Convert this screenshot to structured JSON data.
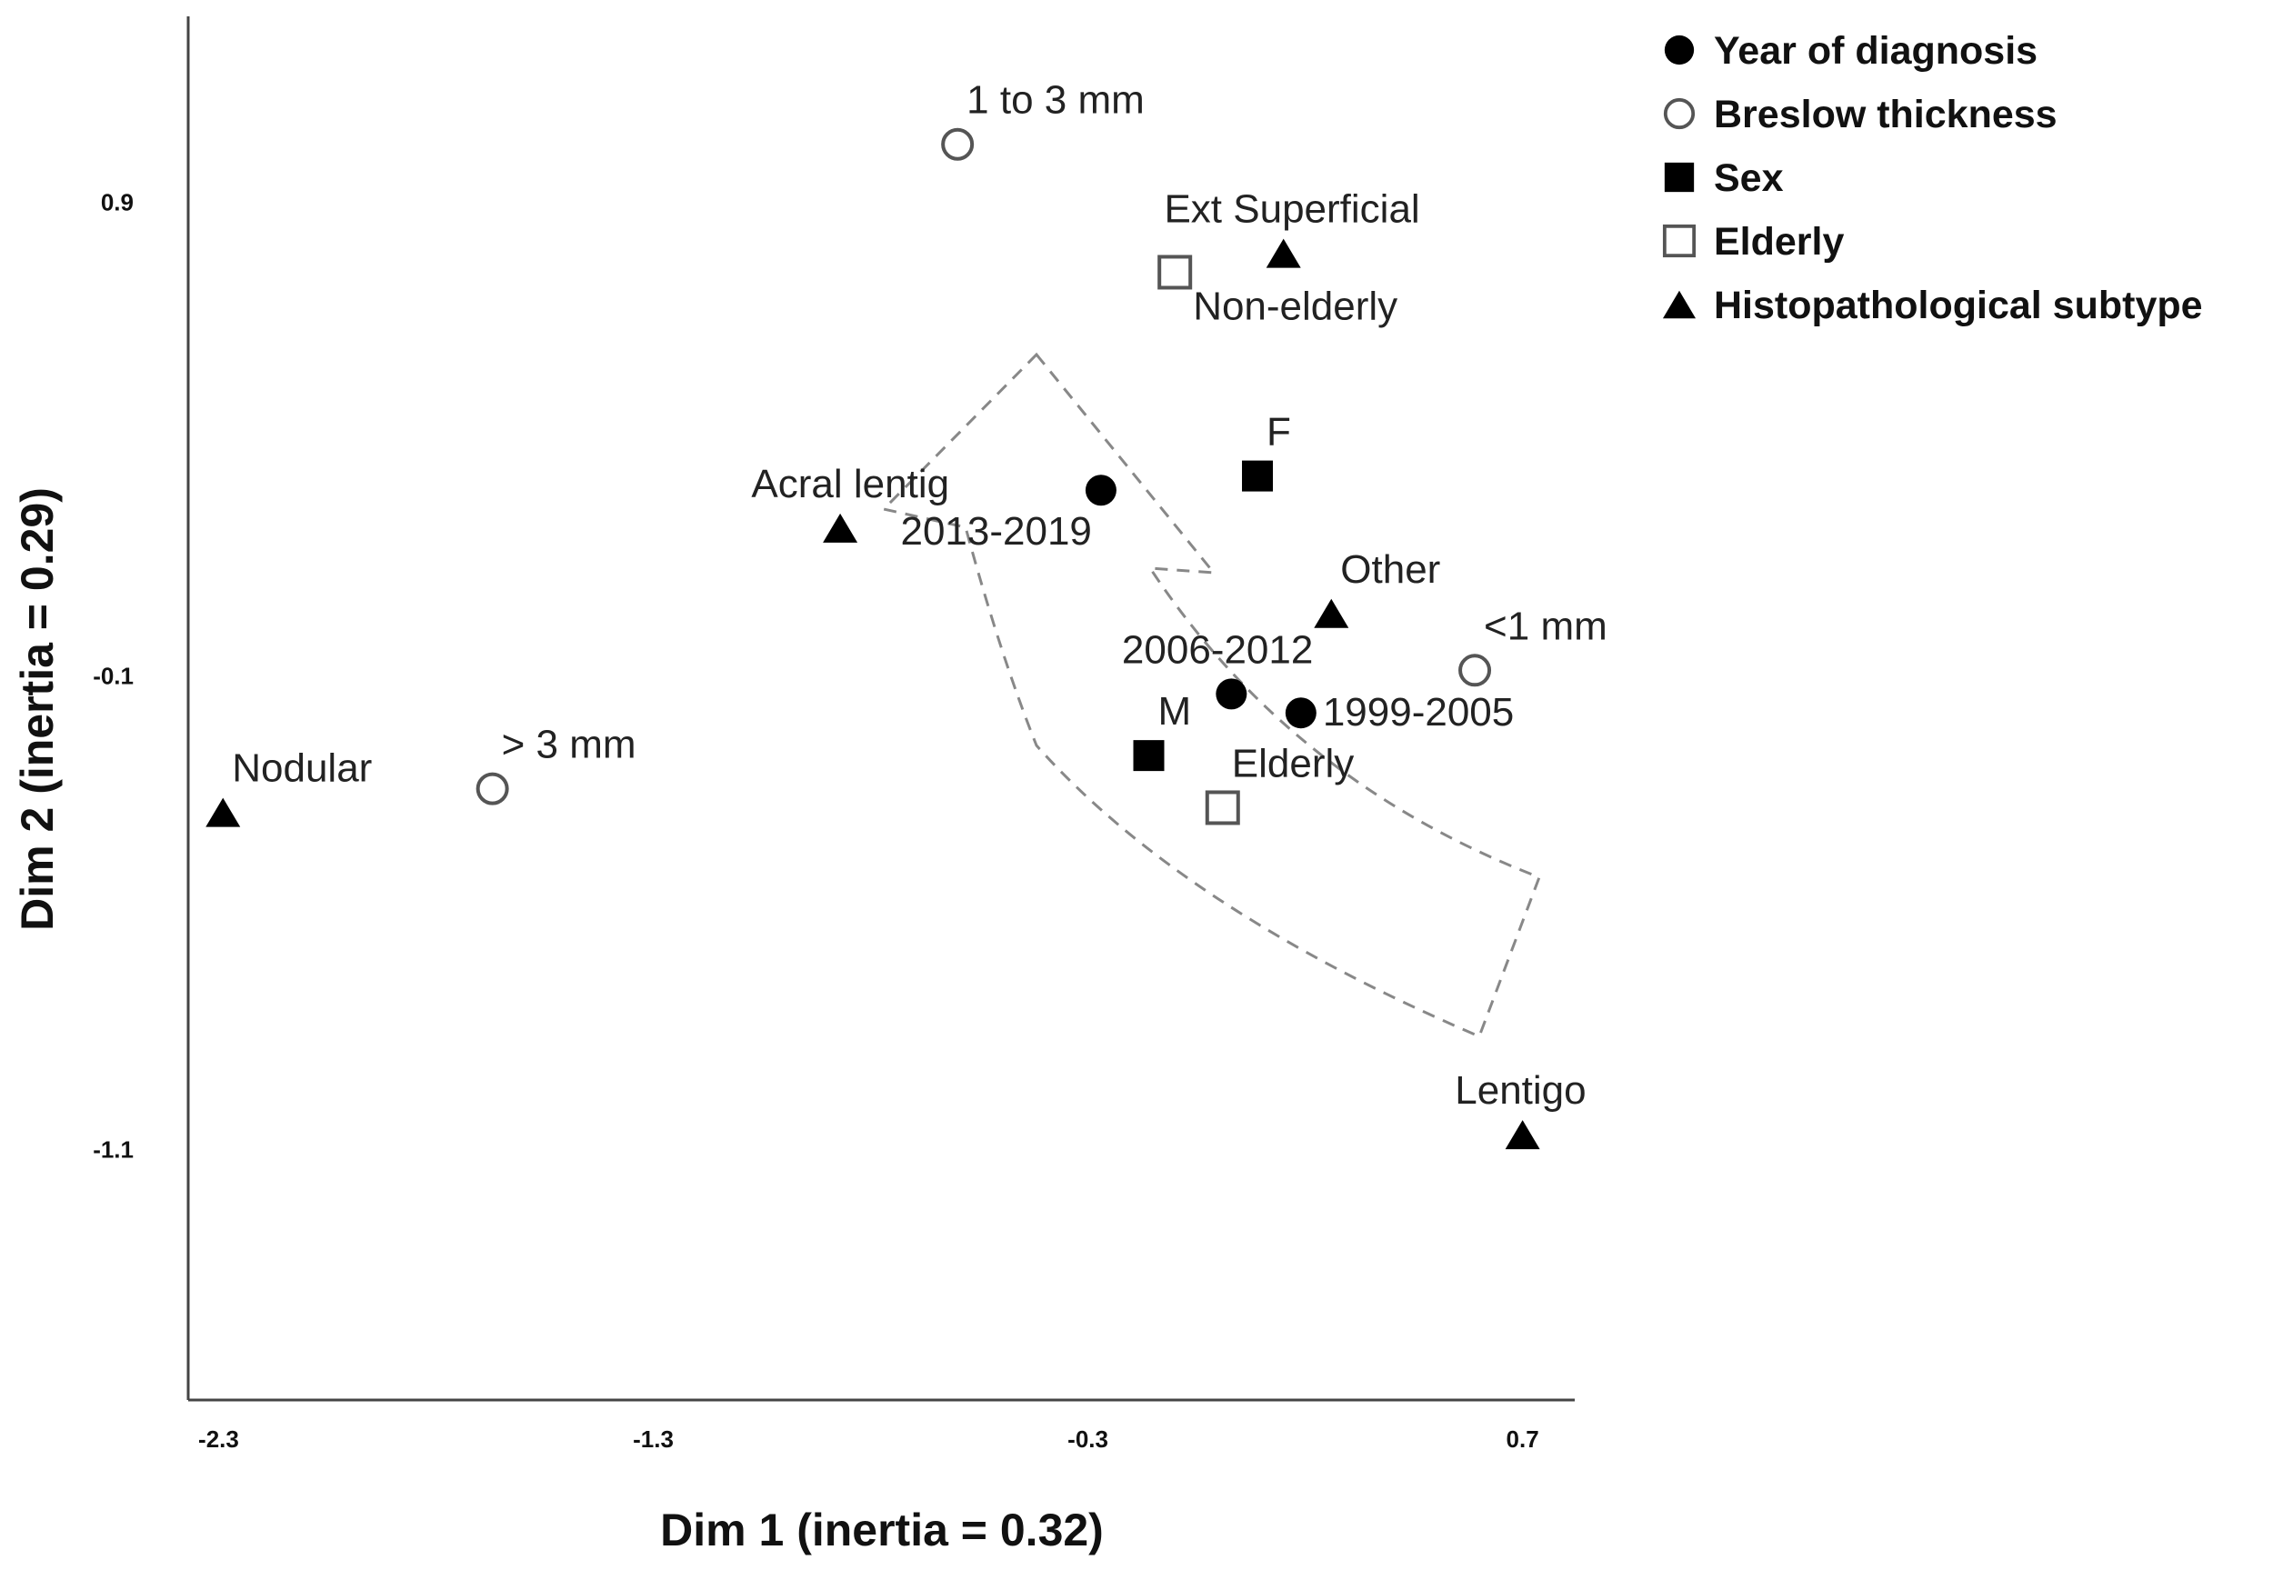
{
  "chart_data": {
    "type": "scatter",
    "xlabel": "Dim 1 (inertia = 0.32)",
    "ylabel": "Dim 2 (inertia = 0.29)",
    "xlim": [
      -2.37,
      0.82
    ],
    "ylim": [
      -1.63,
      1.29
    ],
    "xticks": [
      {
        "value": -2.3,
        "label": "-2.3"
      },
      {
        "value": -1.3,
        "label": "-1.3"
      },
      {
        "value": -0.3,
        "label": "-0.3"
      },
      {
        "value": 0.7,
        "label": "0.7"
      }
    ],
    "yticks": [
      {
        "value": 0.9,
        "label": "0.9"
      },
      {
        "value": -0.1,
        "label": "-0.1"
      },
      {
        "value": -1.1,
        "label": "-1.1"
      }
    ],
    "grid": false,
    "legend_position": "top-right, outside plot",
    "series": [
      {
        "name": "Year of diagnosis",
        "marker": "filled-circle",
        "points": [
          {
            "label": "2013-2019",
            "x": -0.27,
            "y": 0.29,
            "label_pos": "below-left"
          },
          {
            "label": "2006-2012",
            "x": 0.03,
            "y": -0.14,
            "label_pos": "above-left"
          },
          {
            "label": "1999-2005",
            "x": 0.19,
            "y": -0.18,
            "label_pos": "right"
          }
        ]
      },
      {
        "name": "Breslow thickness",
        "marker": "open-circle",
        "points": [
          {
            "label": "1 to 3 mm",
            "x": -0.6,
            "y": 1.02,
            "label_pos": "above-right"
          },
          {
            "label": "<1 mm",
            "x": 0.59,
            "y": -0.09,
            "label_pos": "above-right"
          },
          {
            "label": "> 3 mm",
            "x": -1.67,
            "y": -0.34,
            "label_pos": "above-right"
          }
        ]
      },
      {
        "name": "Sex",
        "marker": "filled-square",
        "points": [
          {
            "label": "F",
            "x": 0.09,
            "y": 0.32,
            "label_pos": "above-right"
          },
          {
            "label": "M",
            "x": -0.16,
            "y": -0.27,
            "label_pos": "above-right"
          }
        ]
      },
      {
        "name": "Elderly",
        "marker": "open-square",
        "points": [
          {
            "label": "Non-elderly",
            "x": -0.1,
            "y": 0.75,
            "label_pos": "below-right"
          },
          {
            "label": "Elderly",
            "x": 0.01,
            "y": -0.38,
            "label_pos": "above-right"
          }
        ]
      },
      {
        "name": "Histopathological subtype",
        "marker": "filled-triangle",
        "points": [
          {
            "label": "Ext Superficial",
            "x": 0.15,
            "y": 0.79,
            "label_pos": "above-left"
          },
          {
            "label": "Acral lentig",
            "x": -0.87,
            "y": 0.21,
            "label_pos": "above-left"
          },
          {
            "label": "Other",
            "x": 0.26,
            "y": 0.03,
            "label_pos": "above-right"
          },
          {
            "label": "Nodular",
            "x": -2.29,
            "y": -0.39,
            "label_pos": "above-right"
          },
          {
            "label": "Lentigo",
            "x": 0.7,
            "y": -1.07,
            "label_pos": "above-left"
          }
        ]
      }
    ],
    "annotations": [
      {
        "type": "dashed-arrow",
        "description": "dashed curved arrow outline through the year-of-diagnosis points, pointing up-left toward 2013-2019"
      }
    ]
  }
}
